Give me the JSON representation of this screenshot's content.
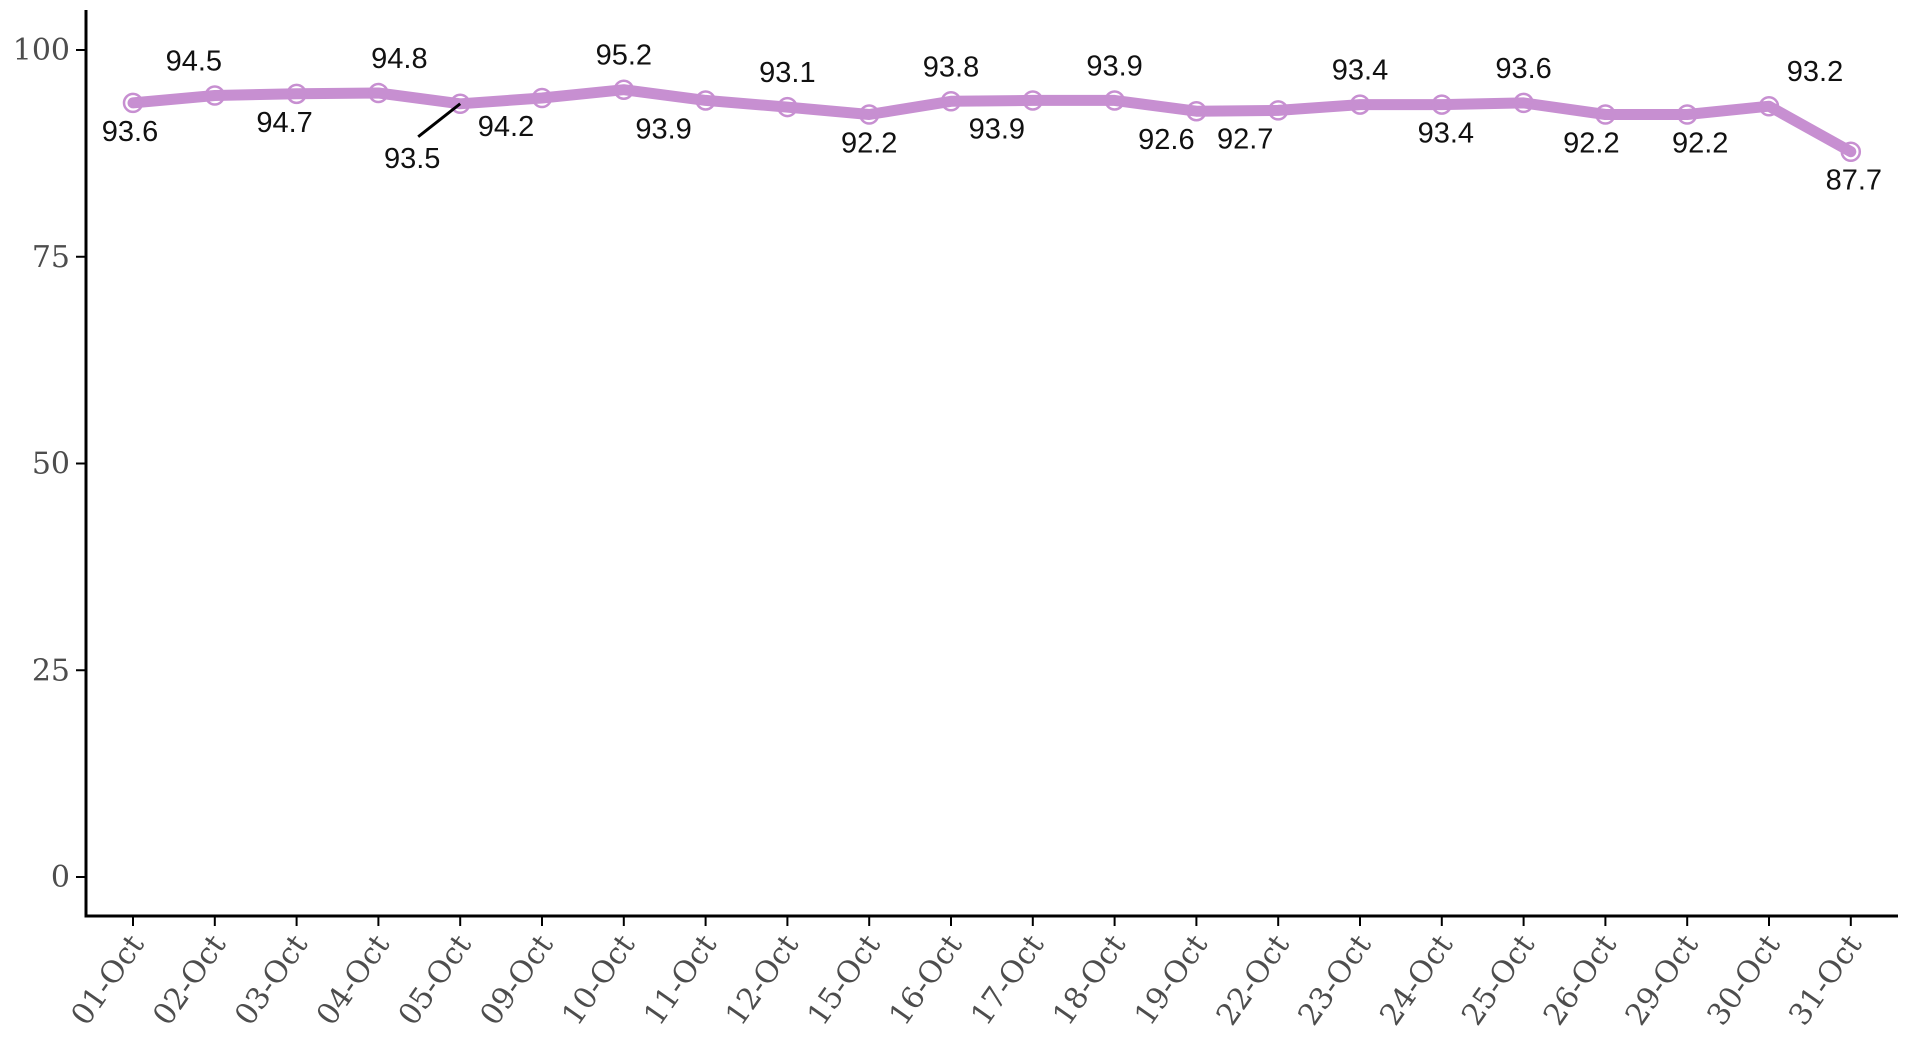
{
  "chart_data": {
    "type": "line",
    "title": "",
    "xlabel": "",
    "ylabel": "",
    "ylim": [
      0,
      100
    ],
    "yticks": [
      0,
      25,
      50,
      75,
      100
    ],
    "grid": false,
    "categories": [
      "01-Oct",
      "02-Oct",
      "03-Oct",
      "04-Oct",
      "05-Oct",
      "09-Oct",
      "10-Oct",
      "11-Oct",
      "12-Oct",
      "15-Oct",
      "16-Oct",
      "17-Oct",
      "18-Oct",
      "19-Oct",
      "22-Oct",
      "23-Oct",
      "24-Oct",
      "25-Oct",
      "26-Oct",
      "29-Oct",
      "30-Oct",
      "31-Oct"
    ],
    "values": [
      93.6,
      94.5,
      94.7,
      94.8,
      93.5,
      94.2,
      95.2,
      93.9,
      93.1,
      92.2,
      93.8,
      93.9,
      93.9,
      92.6,
      92.7,
      93.4,
      93.4,
      93.6,
      92.2,
      92.2,
      93.2,
      87.7
    ],
    "labels": [
      "93.6",
      "94.5",
      "94.7",
      "94.8",
      "93.5",
      "94.2",
      "95.2",
      "93.9",
      "93.1",
      "92.2",
      "93.8",
      "93.9",
      "93.9",
      "92.6",
      "92.7",
      "93.4",
      "93.4",
      "93.6",
      "92.2",
      "92.2",
      "93.2",
      "87.7"
    ],
    "label_side": [
      "below",
      "above",
      "below",
      "above",
      "below",
      "below",
      "above",
      "below",
      "above",
      "below",
      "above",
      "below",
      "above",
      "below",
      "below",
      "above",
      "below",
      "above",
      "below",
      "below",
      "above",
      "below"
    ],
    "colors": {
      "line": "#c78fd1",
      "point": "#c78fd1",
      "axis": "#000000"
    }
  }
}
